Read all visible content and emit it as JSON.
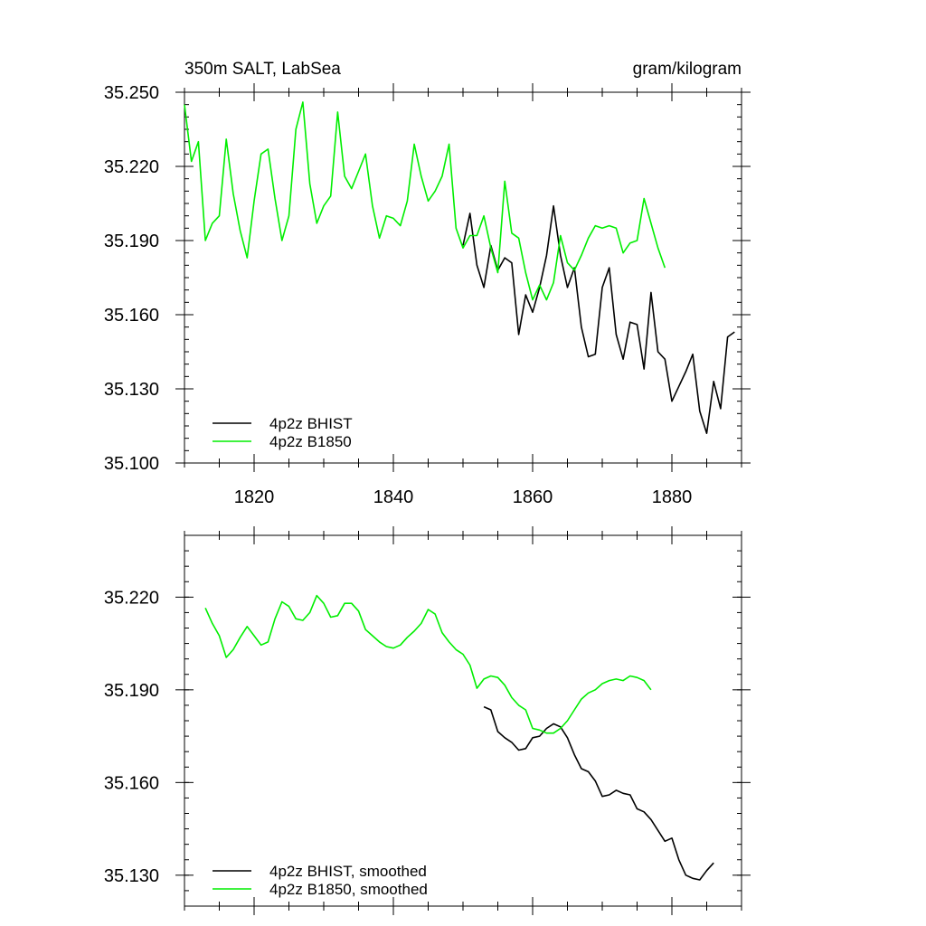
{
  "chart_data": [
    {
      "type": "line",
      "title_left": "350m SALT, LabSea",
      "title_right": "gram/kilogram",
      "xlabel": "",
      "ylabel": "",
      "xlim": [
        1810,
        1890
      ],
      "ylim": [
        35.1,
        35.25
      ],
      "x_ticks": [
        1820,
        1840,
        1860,
        1880
      ],
      "y_ticks": [
        "35.100",
        "35.130",
        "35.160",
        "35.190",
        "35.220",
        "35.250"
      ],
      "legend_position": "bottom-left",
      "series": [
        {
          "name": "4p2z BHIST",
          "color": "#000000",
          "x": [
            1850,
            1851,
            1852,
            1853,
            1854,
            1855,
            1856,
            1857,
            1858,
            1859,
            1860,
            1861,
            1862,
            1863,
            1864,
            1865,
            1866,
            1867,
            1868,
            1869,
            1870,
            1871,
            1872,
            1873,
            1874,
            1875,
            1876,
            1877,
            1878,
            1879,
            1880,
            1881,
            1882,
            1883,
            1884,
            1885,
            1886,
            1887,
            1888,
            1889
          ],
          "values": [
            35.188,
            35.201,
            35.18,
            35.171,
            35.188,
            35.178,
            35.183,
            35.181,
            35.152,
            35.168,
            35.161,
            35.171,
            35.184,
            35.204,
            35.184,
            35.171,
            35.179,
            35.155,
            35.143,
            35.144,
            35.171,
            35.179,
            35.152,
            35.142,
            35.157,
            35.156,
            35.138,
            35.169,
            35.145,
            35.142,
            35.125,
            35.131,
            35.137,
            35.144,
            35.121,
            35.112,
            35.133,
            35.122,
            35.151,
            35.153
          ]
        },
        {
          "name": "4p2z B1850",
          "color": "#00ee00",
          "x": [
            1810,
            1811,
            1812,
            1813,
            1814,
            1815,
            1816,
            1817,
            1818,
            1819,
            1820,
            1821,
            1822,
            1823,
            1824,
            1825,
            1826,
            1827,
            1828,
            1829,
            1830,
            1831,
            1832,
            1833,
            1834,
            1835,
            1836,
            1837,
            1838,
            1839,
            1840,
            1841,
            1842,
            1843,
            1844,
            1845,
            1846,
            1847,
            1848,
            1849,
            1850,
            1851,
            1852,
            1853,
            1854,
            1855,
            1856,
            1857,
            1858,
            1859,
            1860,
            1861,
            1862,
            1863,
            1864,
            1865,
            1866,
            1867,
            1868,
            1869,
            1870,
            1871,
            1872,
            1873,
            1874,
            1875,
            1876,
            1877,
            1878,
            1879
          ],
          "values": [
            35.245,
            35.222,
            35.23,
            35.19,
            35.197,
            35.2,
            35.231,
            35.209,
            35.194,
            35.183,
            35.206,
            35.225,
            35.227,
            35.207,
            35.19,
            35.2,
            35.235,
            35.246,
            35.213,
            35.197,
            35.204,
            35.208,
            35.242,
            35.216,
            35.211,
            35.218,
            35.225,
            35.204,
            35.191,
            35.2,
            35.199,
            35.196,
            35.206,
            35.229,
            35.216,
            35.206,
            35.21,
            35.216,
            35.229,
            35.195,
            35.187,
            35.192,
            35.192,
            35.2,
            35.187,
            35.177,
            35.214,
            35.193,
            35.191,
            35.177,
            35.166,
            35.172,
            35.166,
            35.173,
            35.192,
            35.181,
            35.178,
            35.184,
            35.191,
            35.196,
            35.195,
            35.196,
            35.195,
            35.185,
            35.189,
            35.19,
            35.207,
            35.197,
            35.187,
            35.179
          ]
        }
      ]
    },
    {
      "type": "line",
      "title": "",
      "xlabel": "",
      "ylabel": "",
      "xlim": [
        1810,
        1890
      ],
      "ylim": [
        35.12,
        35.24
      ],
      "x_ticks": [
        1820,
        1840,
        1860,
        1880
      ],
      "y_ticks": [
        "35.130",
        "35.160",
        "35.190",
        "35.220"
      ],
      "legend_position": "bottom-left",
      "series": [
        {
          "name": "4p2z BHIST, smoothed",
          "color": "#000000",
          "x": [
            1853,
            1854,
            1855,
            1856,
            1857,
            1858,
            1859,
            1860,
            1861,
            1862,
            1863,
            1864,
            1865,
            1866,
            1867,
            1868,
            1869,
            1870,
            1871,
            1872,
            1873,
            1874,
            1875,
            1876,
            1877,
            1878,
            1879,
            1880,
            1881,
            1882,
            1883,
            1884,
            1885,
            1886
          ],
          "values": [
            35.1845,
            35.1835,
            35.1765,
            35.1745,
            35.173,
            35.1705,
            35.171,
            35.1745,
            35.175,
            35.1775,
            35.179,
            35.178,
            35.1745,
            35.169,
            35.1645,
            35.1635,
            35.1605,
            35.1555,
            35.156,
            35.1575,
            35.1565,
            35.156,
            35.1515,
            35.1505,
            35.148,
            35.1445,
            35.141,
            35.142,
            35.135,
            35.13,
            35.129,
            35.1285,
            35.1315,
            35.134
          ]
        },
        {
          "name": "4p2z B1850, smoothed",
          "color": "#00ee00",
          "x": [
            1813,
            1814,
            1815,
            1816,
            1817,
            1818,
            1819,
            1820,
            1821,
            1822,
            1823,
            1824,
            1825,
            1826,
            1827,
            1828,
            1829,
            1830,
            1831,
            1832,
            1833,
            1834,
            1835,
            1836,
            1837,
            1838,
            1839,
            1840,
            1841,
            1842,
            1843,
            1844,
            1845,
            1846,
            1847,
            1848,
            1849,
            1850,
            1851,
            1852,
            1853,
            1854,
            1855,
            1856,
            1857,
            1858,
            1859,
            1860,
            1861,
            1862,
            1863,
            1864,
            1865,
            1866,
            1867,
            1868,
            1869,
            1870,
            1871,
            1872,
            1873,
            1874,
            1875,
            1876,
            1877
          ],
          "values": [
            35.2165,
            35.2115,
            35.2075,
            35.2005,
            35.203,
            35.207,
            35.2105,
            35.2075,
            35.2045,
            35.2055,
            35.213,
            35.2185,
            35.217,
            35.213,
            35.2125,
            35.215,
            35.2205,
            35.218,
            35.2135,
            35.214,
            35.218,
            35.218,
            35.2155,
            35.2095,
            35.2075,
            35.2055,
            35.204,
            35.2035,
            35.2045,
            35.207,
            35.209,
            35.2115,
            35.216,
            35.2145,
            35.2085,
            35.2055,
            35.203,
            35.2015,
            35.198,
            35.1905,
            35.1935,
            35.1945,
            35.194,
            35.1915,
            35.1875,
            35.185,
            35.1835,
            35.1775,
            35.177,
            35.176,
            35.176,
            35.1775,
            35.18,
            35.1835,
            35.187,
            35.189,
            35.19,
            35.192,
            35.193,
            35.1935,
            35.193,
            35.1945,
            35.194,
            35.193,
            35.19
          ]
        }
      ]
    }
  ]
}
